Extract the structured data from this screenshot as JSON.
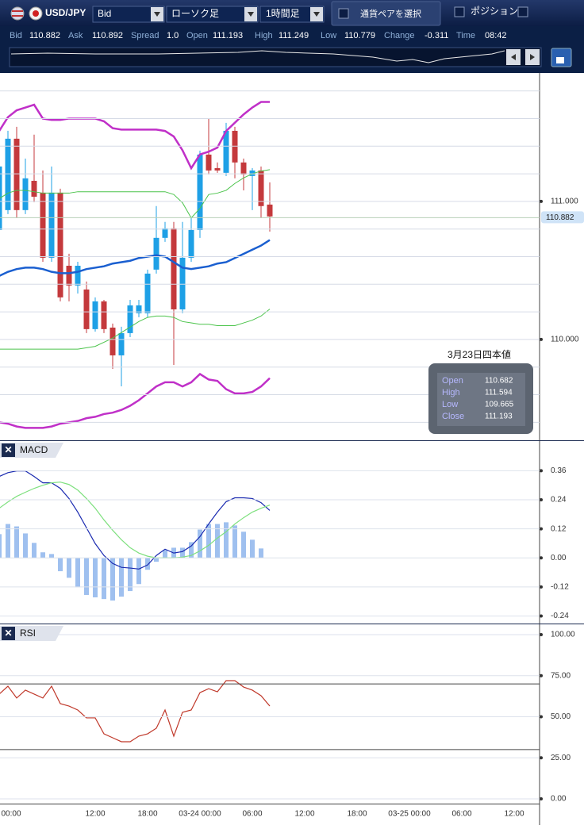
{
  "toolbar": {
    "pair": "USD/JPY",
    "price_type": "Bid",
    "chart_type": "ローソク足",
    "timeframe": "1時間足",
    "select_button": "通貨ペアを選択",
    "position_label": "ポジション"
  },
  "quote": {
    "labels": [
      "Bid",
      "Ask",
      "Spread",
      "Open",
      "High",
      "Low",
      "Change",
      "Time"
    ],
    "values": [
      "110.882",
      "110.892",
      "1.0",
      "111.193",
      "111.249",
      "110.779",
      "-0.311",
      "08:42"
    ]
  },
  "time_labels": [
    "00:00",
    "12:00",
    "18:00",
    "03-24 00:00",
    "06:00",
    "12:00",
    "18:00",
    "03-25 00:00",
    "06:00",
    "12:00"
  ],
  "chart_data": [
    {
      "type": "candlestick",
      "open": [
        110.793,
        110.937,
        111.454,
        110.937,
        111.149,
        111.063,
        110.592,
        111.063,
        110.534,
        110.391,
        110.362,
        110.075,
        110.276,
        110.086,
        109.885,
        110.046,
        110.19,
        110.19,
        110.506,
        110.736,
        110.805,
        110.218,
        110.592,
        110.793,
        111.339,
        111.241,
        111.207,
        111.511,
        111.282,
        111.184,
        111.224,
        110.977
      ],
      "high": [
        111.31,
        111.511,
        111.54,
        111.31,
        111.483,
        111.224,
        111.253,
        111.092,
        110.621,
        110.563,
        110.42,
        110.305,
        110.287,
        110.115,
        110.092,
        110.287,
        110.287,
        110.506,
        110.966,
        110.851,
        110.851,
        110.851,
        110.879,
        111.368,
        111.598,
        111.282,
        111.569,
        111.54,
        111.31,
        111.241,
        111.253,
        111.138
      ],
      "low": [
        110.764,
        110.908,
        110.879,
        110.908,
        110.994,
        110.563,
        110.563,
        110.276,
        110.276,
        110.333,
        110.046,
        110.057,
        110.046,
        109.787,
        109.661,
        110.017,
        110.161,
        110.161,
        110.477,
        110.707,
        109.816,
        110.19,
        110.563,
        110.736,
        111.195,
        111.207,
        111.184,
        111.167,
        111.08,
        110.937,
        110.879,
        110.782
      ],
      "close": [
        111.253,
        111.454,
        110.937,
        111.167,
        111.034,
        110.592,
        111.063,
        110.305,
        110.391,
        110.534,
        110.075,
        110.276,
        110.075,
        109.885,
        110.046,
        110.247,
        110.247,
        110.477,
        110.736,
        110.805,
        110.218,
        110.592,
        110.793,
        111.339,
        111.224,
        111.224,
        111.511,
        111.282,
        111.195,
        111.224,
        110.966,
        110.891
      ],
      "up_color": "#1ea0e6",
      "down_color": "#c4393c",
      "series": [
        {
          "color": "#c030c8",
          "values": [
            111.51,
            111.61,
            111.66,
            111.68,
            111.7,
            111.6,
            111.59,
            111.59,
            111.6,
            111.6,
            111.6,
            111.6,
            111.58,
            111.53,
            111.52,
            111.52,
            111.52,
            111.52,
            111.52,
            111.51,
            111.47,
            111.37,
            111.24,
            111.34,
            111.36,
            111.39,
            111.51,
            111.57,
            111.63,
            111.68,
            111.72,
            111.72
          ]
        },
        {
          "color": "#4cc44c",
          "values": [
            111.02,
            111.06,
            111.08,
            111.08,
            111.07,
            111.06,
            111.06,
            111.06,
            111.06,
            111.07,
            111.07,
            111.07,
            111.07,
            111.07,
            111.07,
            111.07,
            111.07,
            111.07,
            111.07,
            111.07,
            111.05,
            110.99,
            110.88,
            110.95,
            111.05,
            111.06,
            111.08,
            111.13,
            111.17,
            111.2,
            111.22,
            111.23
          ]
        },
        {
          "color": "#1a5fd0",
          "values": [
            110.46,
            110.49,
            110.51,
            110.52,
            110.52,
            110.51,
            110.49,
            110.48,
            110.48,
            110.49,
            110.51,
            110.52,
            110.53,
            110.55,
            110.56,
            110.57,
            110.59,
            110.6,
            110.61,
            110.6,
            110.56,
            110.52,
            110.51,
            110.52,
            110.53,
            110.55,
            110.56,
            110.59,
            110.62,
            110.65,
            110.68,
            110.72
          ]
        },
        {
          "color": "#4cc44c",
          "values": [
            109.93,
            109.93,
            109.93,
            109.93,
            109.93,
            109.93,
            109.93,
            109.93,
            109.93,
            109.93,
            109.94,
            109.95,
            109.98,
            110.01,
            110.05,
            110.09,
            110.13,
            110.16,
            110.17,
            110.17,
            110.16,
            110.13,
            110.12,
            110.11,
            110.11,
            110.1,
            110.1,
            110.1,
            110.12,
            110.14,
            110.17,
            110.22
          ]
        },
        {
          "color": "#c030c8",
          "values": [
            109.4,
            109.39,
            109.37,
            109.36,
            109.36,
            109.36,
            109.37,
            109.39,
            109.4,
            109.41,
            109.43,
            109.44,
            109.46,
            109.47,
            109.49,
            109.52,
            109.56,
            109.61,
            109.66,
            109.69,
            109.69,
            109.66,
            109.69,
            109.75,
            109.71,
            109.7,
            109.64,
            109.61,
            109.61,
            109.62,
            109.66,
            109.72
          ]
        }
      ],
      "ylim": [
        109.27,
        111.93
      ],
      "yticks": [
        {
          "value": 110,
          "label": "110.000"
        },
        {
          "value": 111,
          "label": "111.000"
        }
      ],
      "grid_lines": [
        109.4,
        109.6,
        109.8,
        110.0,
        110.2,
        110.4,
        110.6,
        110.8,
        111.0,
        111.2,
        111.4,
        111.6,
        111.8
      ],
      "last_price": {
        "value": 110.882,
        "label": "110.882"
      },
      "info_box": {
        "title": "3月23日四本値",
        "labels": [
          "Open",
          "High",
          "Low",
          "Close"
        ],
        "values": [
          "110.682",
          "111.594",
          "109.665",
          "111.193"
        ]
      }
    },
    {
      "type": "macd",
      "title": "MACD",
      "series": [
        {
          "color": "#9fc0ef",
          "style": "bars",
          "values": [
            0.098,
            0.14,
            0.13,
            0.101,
            0.062,
            0.023,
            0.016,
            -0.055,
            -0.082,
            -0.121,
            -0.153,
            -0.163,
            -0.17,
            -0.176,
            -0.16,
            -0.137,
            -0.108,
            -0.049,
            -0.016,
            0.033,
            0.042,
            0.042,
            0.065,
            0.117,
            0.14,
            0.14,
            0.147,
            0.134,
            0.108,
            0.075,
            0.039,
            null
          ]
        },
        {
          "color": "#1a2ab0",
          "style": "line",
          "values": [
            0.336,
            0.352,
            0.359,
            0.359,
            0.336,
            0.31,
            0.31,
            0.287,
            0.245,
            0.189,
            0.124,
            0.059,
            0.01,
            -0.023,
            -0.039,
            -0.042,
            -0.046,
            -0.029,
            0.01,
            0.036,
            0.02,
            0.026,
            0.049,
            0.088,
            0.14,
            0.189,
            0.232,
            0.248,
            0.248,
            0.245,
            0.228,
            0.196
          ]
        },
        {
          "color": "#7ee07e",
          "style": "line",
          "values": [
            0.205,
            0.231,
            0.254,
            0.271,
            0.287,
            0.3,
            0.31,
            0.313,
            0.303,
            0.28,
            0.245,
            0.205,
            0.157,
            0.114,
            0.075,
            0.042,
            0.02,
            0.007,
            0.0,
            0.0,
            0.0,
            0.003,
            0.01,
            0.029,
            0.052,
            0.082,
            0.108,
            0.14,
            0.166,
            0.189,
            0.205,
            0.218
          ]
        }
      ],
      "ylim": [
        -0.271,
        0.479
      ],
      "yticks": [
        0.36,
        0.24,
        0.12,
        {
          "value": 0,
          "label": "0.00"
        },
        -0.12,
        -0.24
      ]
    },
    {
      "type": "rsi",
      "title": "RSI",
      "series": [
        {
          "color": "#c0392b",
          "style": "line",
          "values": [
            63.8,
            68.6,
            61.4,
            66.2,
            63.8,
            61.4,
            68.6,
            58.0,
            56.5,
            54.1,
            49.3,
            49.3,
            39.6,
            37.2,
            34.8,
            34.8,
            38.2,
            39.6,
            43.0,
            54.1,
            38.2,
            52.7,
            54.1,
            64.7,
            67.1,
            65.2,
            72.0,
            72.0,
            68.1,
            66.2,
            62.8,
            56.5
          ]
        }
      ],
      "levels": [
        70,
        30
      ],
      "ylim": [
        -2.9,
        105.8
      ],
      "yticks": [
        {
          "value": 100,
          "label": "100.00"
        },
        {
          "value": 75,
          "label": "75.00"
        },
        {
          "value": 50,
          "label": "50.00"
        },
        {
          "value": 25,
          "label": "25.00"
        },
        {
          "value": 0,
          "label": "0.00"
        }
      ]
    }
  ]
}
